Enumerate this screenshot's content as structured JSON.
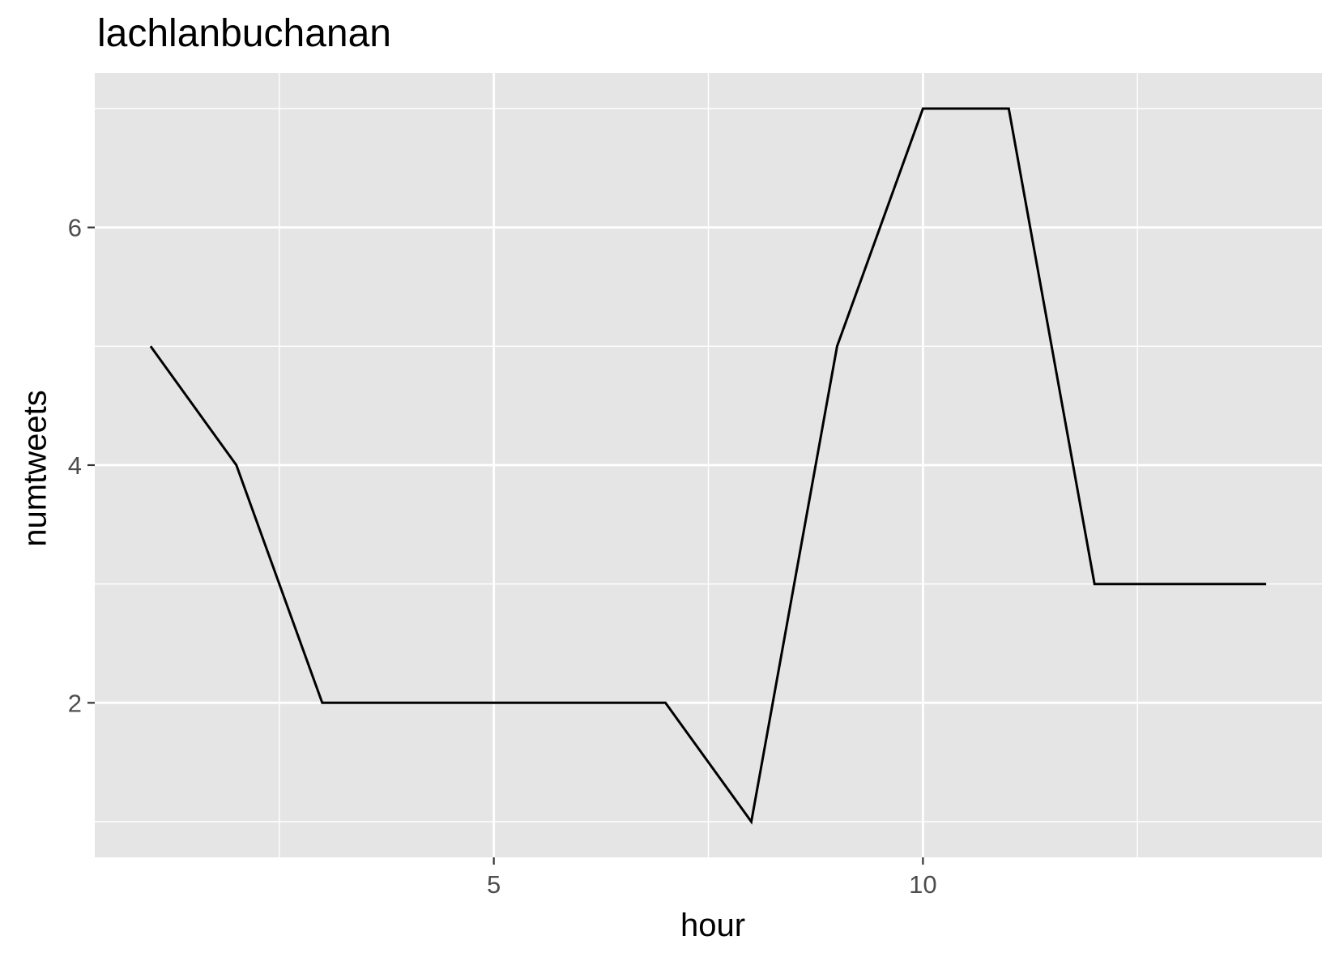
{
  "chart_data": {
    "type": "line",
    "title": "lachlanbuchanan",
    "xlabel": "hour",
    "ylabel": "numtweets",
    "x": [
      1,
      2,
      3,
      4,
      5,
      6,
      7,
      8,
      9,
      10,
      11,
      12,
      13,
      14
    ],
    "y": [
      5,
      4,
      2,
      2,
      2,
      2,
      2,
      1,
      5,
      7,
      7,
      3,
      3,
      3
    ],
    "xlim": [
      0.35,
      14.65
    ],
    "ylim": [
      0.7,
      7.3
    ],
    "x_major_ticks": [
      5,
      10
    ],
    "x_minor_gridlines": [
      2.5,
      7.5,
      12.5
    ],
    "y_major_ticks": [
      2,
      4,
      6
    ],
    "y_minor_gridlines": [
      1,
      3,
      5,
      7
    ],
    "grid": true,
    "colors": {
      "panel": "#E5E5E5",
      "grid": "#FFFFFF",
      "line": "#000000",
      "tick_text": "#4D4D4D",
      "tick_mark": "#333333"
    }
  }
}
